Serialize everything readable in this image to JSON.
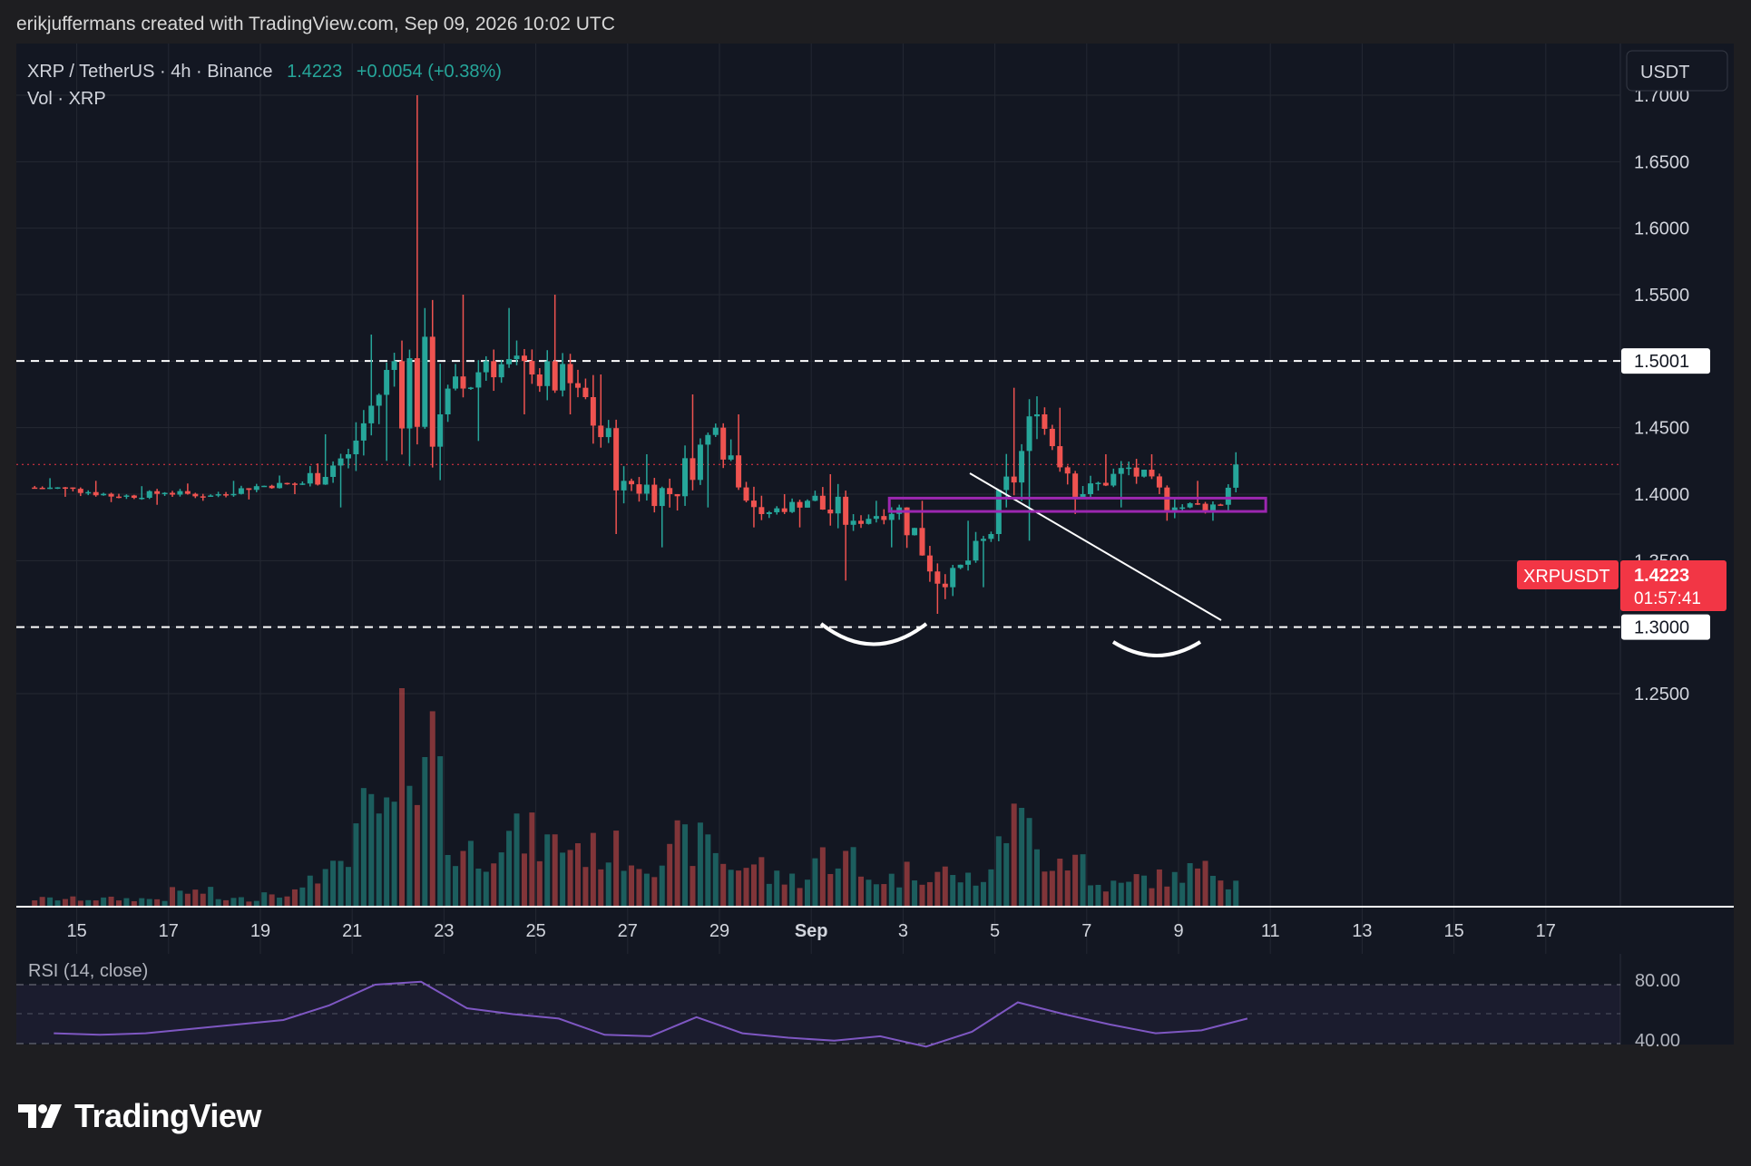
{
  "byline": "erikjuffermans created with TradingView.com, Sep 09, 2026 10:02 UTC",
  "legend": {
    "symbol": "XRP / TetherUS · 4h · Binance",
    "price": "1.4223",
    "change": "+0.0054 (+0.38%)",
    "volume": "Vol · XRP"
  },
  "currency_button": "USDT",
  "price_tag": {
    "symbol": "XRPUSDT",
    "price": "1.4223",
    "countdown": "01:57:41"
  },
  "level_labels": [
    "1.5001",
    "1.3000"
  ],
  "rsi_label": "RSI (14, close)",
  "brand": "TradingView",
  "colors": {
    "background": "#131722",
    "up": "#26a69a",
    "down": "#ef5350",
    "rsi": "#7e57c2",
    "box": "#9c27b0",
    "price_tag": "#f23645"
  },
  "chart_data": {
    "type": "candlestick",
    "timeframe": "4h",
    "y_range": [
      1.22,
      1.71
    ],
    "y_ticks": [
      "1.7000",
      "1.6500",
      "1.6000",
      "1.5500",
      "1.5000",
      "1.4500",
      "1.4000",
      "1.3500",
      "1.3000",
      "1.2500"
    ],
    "x_tick_labels": [
      "15",
      "17",
      "19",
      "21",
      "23",
      "25",
      "27",
      "29",
      "Sep",
      "3",
      "5",
      "7",
      "9",
      "11",
      "13",
      "15",
      "17"
    ],
    "last_price": 1.4223,
    "horizontal_levels": [
      1.5001,
      1.3
    ],
    "support_zone": [
      1.387,
      1.397
    ],
    "rsi_ticks": [
      "80.00",
      "40.00"
    ],
    "ohlc": [
      {
        "d": "Aug 14",
        "o": 1.405,
        "h": 1.412,
        "l": 1.398,
        "c": 1.404
      },
      {
        "d": "Aug 15",
        "o": 1.404,
        "h": 1.41,
        "l": 1.394,
        "c": 1.398
      },
      {
        "d": "Aug 16",
        "o": 1.398,
        "h": 1.406,
        "l": 1.392,
        "c": 1.401
      },
      {
        "d": "Aug 17",
        "o": 1.401,
        "h": 1.408,
        "l": 1.395,
        "c": 1.399
      },
      {
        "d": "Aug 18",
        "o": 1.399,
        "h": 1.41,
        "l": 1.396,
        "c": 1.406
      },
      {
        "d": "Aug 19",
        "o": 1.406,
        "h": 1.414,
        "l": 1.4,
        "c": 1.408
      },
      {
        "d": "Aug 20",
        "o": 1.408,
        "h": 1.445,
        "l": 1.39,
        "c": 1.43
      },
      {
        "d": "Aug 21",
        "o": 1.43,
        "h": 1.52,
        "l": 1.425,
        "c": 1.5
      },
      {
        "d": "Aug 22",
        "o": 1.5,
        "h": 1.7,
        "l": 1.42,
        "c": 1.46
      },
      {
        "d": "Aug 23",
        "o": 1.46,
        "h": 1.55,
        "l": 1.44,
        "c": 1.5
      },
      {
        "d": "Aug 24",
        "o": 1.5,
        "h": 1.54,
        "l": 1.46,
        "c": 1.49
      },
      {
        "d": "Aug 25",
        "o": 1.49,
        "h": 1.55,
        "l": 1.46,
        "c": 1.48
      },
      {
        "d": "Aug 26",
        "o": 1.48,
        "h": 1.49,
        "l": 1.37,
        "c": 1.41
      },
      {
        "d": "Aug 27",
        "o": 1.41,
        "h": 1.43,
        "l": 1.36,
        "c": 1.4
      },
      {
        "d": "Aug 28",
        "o": 1.4,
        "h": 1.475,
        "l": 1.39,
        "c": 1.45
      },
      {
        "d": "Aug 29",
        "o": 1.45,
        "h": 1.46,
        "l": 1.375,
        "c": 1.385
      },
      {
        "d": "Aug 30",
        "o": 1.385,
        "h": 1.4,
        "l": 1.375,
        "c": 1.395
      },
      {
        "d": "Aug 31",
        "o": 1.395,
        "h": 1.415,
        "l": 1.335,
        "c": 1.38
      },
      {
        "d": "Sep 1",
        "o": 1.38,
        "h": 1.395,
        "l": 1.36,
        "c": 1.39
      },
      {
        "d": "Sep 2",
        "o": 1.39,
        "h": 1.395,
        "l": 1.31,
        "c": 1.33
      },
      {
        "d": "Sep 3",
        "o": 1.33,
        "h": 1.38,
        "l": 1.33,
        "c": 1.37
      },
      {
        "d": "Sep 4",
        "o": 1.37,
        "h": 1.48,
        "l": 1.365,
        "c": 1.46
      },
      {
        "d": "Sep 5",
        "o": 1.46,
        "h": 1.465,
        "l": 1.385,
        "c": 1.4
      },
      {
        "d": "Sep 6",
        "o": 1.4,
        "h": 1.43,
        "l": 1.39,
        "c": 1.42
      },
      {
        "d": "Sep 7",
        "o": 1.42,
        "h": 1.43,
        "l": 1.38,
        "c": 1.39
      },
      {
        "d": "Sep 8",
        "o": 1.39,
        "h": 1.41,
        "l": 1.38,
        "c": 1.392
      },
      {
        "d": "Sep 9",
        "o": 1.392,
        "h": 1.45,
        "l": 1.385,
        "c": 1.4223
      }
    ],
    "volume": [
      1,
      1,
      1,
      2,
      1,
      2,
      5,
      13,
      24,
      8,
      10,
      9,
      8,
      7,
      9,
      6,
      4,
      7,
      4,
      5,
      4,
      12,
      7,
      3,
      4,
      5,
      4
    ],
    "rsi": [
      47,
      46,
      47,
      50,
      53,
      56,
      66,
      80,
      82,
      64,
      60,
      57,
      46,
      45,
      58,
      47,
      44,
      42,
      45,
      38,
      48,
      68,
      60,
      53,
      47,
      49,
      57
    ]
  }
}
